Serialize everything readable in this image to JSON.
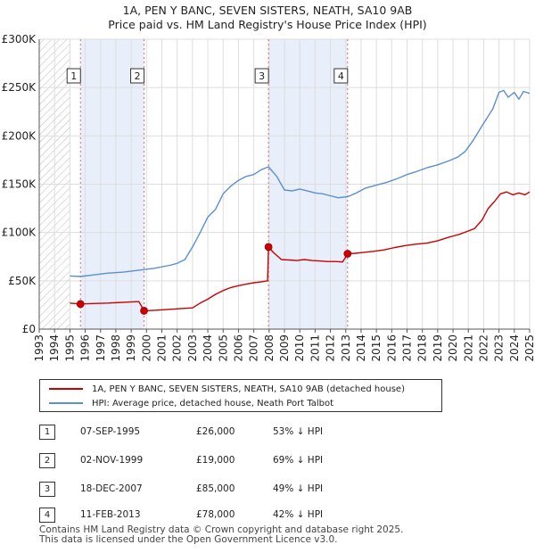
{
  "header": {
    "title_line1": "1A, PEN Y BANC, SEVEN SISTERS, NEATH, SA10 9AB",
    "title_line2": "Price paid vs. HM Land Registry's House Price Index (HPI)"
  },
  "colors": {
    "property": "#cc0000",
    "hpi": "#5b8fd1",
    "shade": "#e8eefa",
    "grid": "#dddddd"
  },
  "chart_data": {
    "type": "line",
    "title": "Price paid vs. HM Land Registry's House Price Index (HPI)",
    "xlabel": "",
    "ylabel": "",
    "xlim": [
      1993,
      2025
    ],
    "ylim": [
      0,
      300000
    ],
    "y_ticks": [
      {
        "value": 0,
        "label": "£0"
      },
      {
        "value": 50000,
        "label": "£50K"
      },
      {
        "value": 100000,
        "label": "£100K"
      },
      {
        "value": 150000,
        "label": "£150K"
      },
      {
        "value": 200000,
        "label": "£200K"
      },
      {
        "value": 250000,
        "label": "£250K"
      },
      {
        "value": 300000,
        "label": "£300K"
      }
    ],
    "x_ticks": [
      "1993",
      "1994",
      "1995",
      "1996",
      "1997",
      "1998",
      "1999",
      "2000",
      "2001",
      "2002",
      "2003",
      "2004",
      "2005",
      "2006",
      "2007",
      "2008",
      "2009",
      "2010",
      "2011",
      "2012",
      "2013",
      "2014",
      "2015",
      "2016",
      "2017",
      "2018",
      "2019",
      "2020",
      "2021",
      "2022",
      "2023",
      "2024",
      "2025"
    ],
    "hatched_before": 1995.0,
    "shaded_ranges": [
      [
        1995.69,
        1999.84
      ],
      [
        2007.96,
        2013.12
      ]
    ],
    "series": [
      {
        "name": "1A, PEN Y BANC, SEVEN SISTERS, NEATH, SA10 9AB (detached house)",
        "color": "#cc0000",
        "x": [
          1995.0,
          1995.69,
          1996.5,
          1997.5,
          1998.5,
          1999.5,
          1999.84,
          2000.5,
          2001.5,
          2002.5,
          2003.0,
          2003.5,
          2004.0,
          2004.5,
          2005.0,
          2005.5,
          2006.0,
          2006.5,
          2007.0,
          2007.5,
          2007.9,
          2007.96,
          2008.3,
          2008.8,
          2009.3,
          2009.8,
          2010.3,
          2010.8,
          2011.3,
          2011.8,
          2012.3,
          2012.8,
          2013.12,
          2013.6,
          2014.2,
          2014.8,
          2015.5,
          2016.2,
          2016.9,
          2017.6,
          2018.3,
          2019.0,
          2019.7,
          2020.4,
          2020.9,
          2021.4,
          2021.9,
          2022.3,
          2022.7,
          2023.1,
          2023.5,
          2023.9,
          2024.3,
          2024.7,
          2025.0
        ],
        "values": [
          27000,
          26000,
          26500,
          27000,
          27800,
          28500,
          19000,
          19500,
          20500,
          21500,
          22000,
          27000,
          31000,
          36000,
          40000,
          43000,
          45000,
          46500,
          48000,
          49000,
          50000,
          85000,
          79000,
          72000,
          71500,
          71000,
          72000,
          71000,
          70500,
          70000,
          70000,
          69500,
          78000,
          78500,
          79500,
          80500,
          82000,
          84500,
          86500,
          88000,
          89000,
          91500,
          95000,
          98000,
          101000,
          104000,
          113000,
          125000,
          132000,
          140000,
          142000,
          139000,
          141000,
          139000,
          142000
        ]
      },
      {
        "name": "HPI: Average price, detached house, Neath Port Talbot",
        "color": "#5b8fd1",
        "x": [
          1995.0,
          1995.69,
          1996.5,
          1997.5,
          1998.5,
          1999.5,
          2000.5,
          2001.5,
          2002.0,
          2002.5,
          2003.0,
          2003.5,
          2004.0,
          2004.5,
          2005.0,
          2005.5,
          2006.0,
          2006.5,
          2007.0,
          2007.5,
          2007.96,
          2008.5,
          2009.0,
          2009.5,
          2010.0,
          2010.5,
          2011.0,
          2011.5,
          2012.0,
          2012.5,
          2013.12,
          2013.7,
          2014.3,
          2015.0,
          2015.7,
          2016.4,
          2017.0,
          2017.6,
          2018.3,
          2019.0,
          2019.7,
          2020.3,
          2020.8,
          2021.3,
          2021.8,
          2022.2,
          2022.6,
          2023.0,
          2023.3,
          2023.6,
          2024.0,
          2024.3,
          2024.6,
          2025.0
        ],
        "values": [
          55000,
          54500,
          56000,
          58000,
          59000,
          61000,
          63000,
          66000,
          68000,
          72000,
          85000,
          100000,
          116000,
          124000,
          140000,
          148000,
          154000,
          158000,
          160000,
          165000,
          168000,
          158000,
          144000,
          143000,
          145000,
          143000,
          141000,
          140000,
          138000,
          136000,
          137000,
          141000,
          146000,
          149000,
          152000,
          156000,
          160000,
          163000,
          167000,
          170000,
          174000,
          178000,
          184000,
          195000,
          208000,
          218000,
          228000,
          245000,
          247000,
          240000,
          245000,
          238000,
          246000,
          244000
        ]
      }
    ],
    "sales": [
      {
        "label": "1",
        "x": 1995.69,
        "value": 26000
      },
      {
        "label": "2",
        "x": 1999.84,
        "value": 19000
      },
      {
        "label": "3",
        "x": 2007.96,
        "value": 85000
      },
      {
        "label": "4",
        "x": 2013.12,
        "value": 78000
      }
    ]
  },
  "legend": {
    "property_label": "1A, PEN Y BANC, SEVEN SISTERS, NEATH, SA10 9AB (detached house)",
    "hpi_label": "HPI: Average price, detached house, Neath Port Talbot"
  },
  "transactions": [
    {
      "num": "1",
      "date": "07-SEP-1995",
      "price": "£26,000",
      "hpi": "53% ↓ HPI"
    },
    {
      "num": "2",
      "date": "02-NOV-1999",
      "price": "£19,000",
      "hpi": "69% ↓ HPI"
    },
    {
      "num": "3",
      "date": "18-DEC-2007",
      "price": "£85,000",
      "hpi": "49% ↓ HPI"
    },
    {
      "num": "4",
      "date": "11-FEB-2013",
      "price": "£78,000",
      "hpi": "42% ↓ HPI"
    }
  ],
  "footer": {
    "line1": "Contains HM Land Registry data © Crown copyright and database right 2025.",
    "line2": "This data is licensed under the Open Government Licence v3.0."
  }
}
